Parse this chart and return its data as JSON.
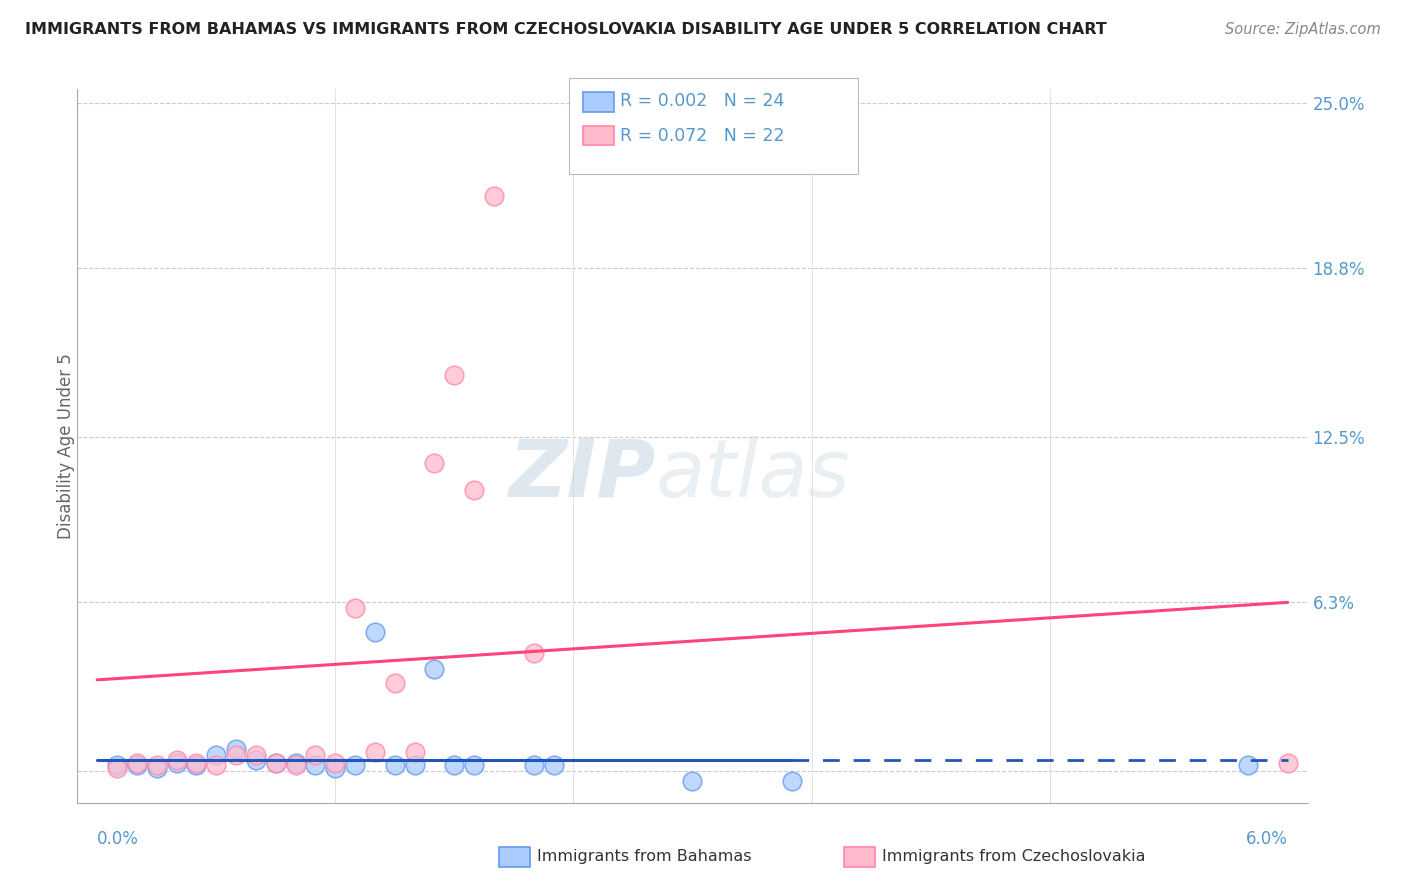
{
  "title": "IMMIGRANTS FROM BAHAMAS VS IMMIGRANTS FROM CZECHOSLOVAKIA DISABILITY AGE UNDER 5 CORRELATION CHART",
  "source": "Source: ZipAtlas.com",
  "ylabel": "Disability Age Under 5",
  "y_ticks": [
    0.0,
    0.063,
    0.125,
    0.188,
    0.25
  ],
  "y_tick_labels": [
    "",
    "6.3%",
    "12.5%",
    "18.8%",
    "25.0%"
  ],
  "x_min": 0.0,
  "x_max": 0.06,
  "y_min": 0.0,
  "y_max": 0.25,
  "bahamas_scatter": [
    [
      0.001,
      0.002
    ],
    [
      0.002,
      0.002
    ],
    [
      0.003,
      0.001
    ],
    [
      0.004,
      0.003
    ],
    [
      0.005,
      0.002
    ],
    [
      0.006,
      0.006
    ],
    [
      0.007,
      0.008
    ],
    [
      0.008,
      0.004
    ],
    [
      0.009,
      0.003
    ],
    [
      0.01,
      0.003
    ],
    [
      0.011,
      0.002
    ],
    [
      0.012,
      0.001
    ],
    [
      0.013,
      0.002
    ],
    [
      0.014,
      0.052
    ],
    [
      0.015,
      0.002
    ],
    [
      0.016,
      0.002
    ],
    [
      0.017,
      0.038
    ],
    [
      0.018,
      0.002
    ],
    [
      0.019,
      0.002
    ],
    [
      0.022,
      0.002
    ],
    [
      0.023,
      0.002
    ],
    [
      0.03,
      -0.004
    ],
    [
      0.035,
      -0.004
    ],
    [
      0.058,
      0.002
    ]
  ],
  "czechoslovakia_scatter": [
    [
      0.001,
      0.001
    ],
    [
      0.002,
      0.003
    ],
    [
      0.003,
      0.002
    ],
    [
      0.004,
      0.004
    ],
    [
      0.005,
      0.003
    ],
    [
      0.006,
      0.002
    ],
    [
      0.007,
      0.006
    ],
    [
      0.008,
      0.006
    ],
    [
      0.009,
      0.003
    ],
    [
      0.01,
      0.002
    ],
    [
      0.011,
      0.006
    ],
    [
      0.012,
      0.003
    ],
    [
      0.013,
      0.061
    ],
    [
      0.014,
      0.007
    ],
    [
      0.015,
      0.033
    ],
    [
      0.016,
      0.007
    ],
    [
      0.017,
      0.115
    ],
    [
      0.018,
      0.148
    ],
    [
      0.019,
      0.105
    ],
    [
      0.02,
      0.215
    ],
    [
      0.022,
      0.044
    ],
    [
      0.06,
      0.003
    ]
  ],
  "bahamas_trend_solid": {
    "x": [
      0.0,
      0.035
    ],
    "y": [
      0.004,
      0.004
    ]
  },
  "bahamas_trend_dash": {
    "x": [
      0.035,
      0.06
    ],
    "y": [
      0.004,
      0.004
    ]
  },
  "czechoslovakia_trend": {
    "x": [
      0.0,
      0.06
    ],
    "y": [
      0.034,
      0.063
    ]
  },
  "watermark_zip": "ZIP",
  "watermark_atlas": "atlas",
  "background_color": "#ffffff",
  "blue_scatter_face": "#aaccff",
  "blue_scatter_edge": "#6699ee",
  "pink_scatter_face": "#ffbbcc",
  "pink_scatter_edge": "#ff88aa",
  "blue_trend_color": "#2255bb",
  "pink_trend_color": "#ff4477",
  "tick_color": "#5599cc",
  "grid_color": "#cccccc",
  "ylabel_color": "#666666",
  "title_color": "#222222",
  "source_color": "#888888"
}
